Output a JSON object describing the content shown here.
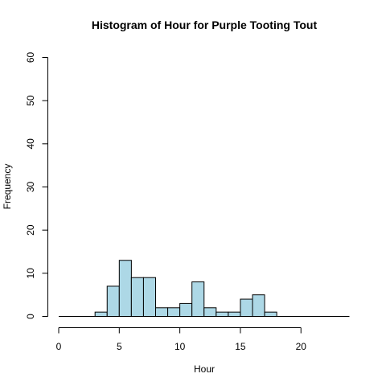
{
  "chart_data": {
    "type": "bar",
    "title": "Histogram of Hour for Purple Tooting Tout",
    "xlabel": "Hour",
    "ylabel": "Frequency",
    "xlim": [
      0,
      24
    ],
    "ylim": [
      0,
      60
    ],
    "bin_width": 1,
    "bins": [
      {
        "start": 3,
        "end": 4,
        "count": 1
      },
      {
        "start": 4,
        "end": 5,
        "count": 7
      },
      {
        "start": 5,
        "end": 6,
        "count": 13
      },
      {
        "start": 6,
        "end": 7,
        "count": 9
      },
      {
        "start": 7,
        "end": 8,
        "count": 9
      },
      {
        "start": 8,
        "end": 9,
        "count": 2
      },
      {
        "start": 9,
        "end": 10,
        "count": 2
      },
      {
        "start": 10,
        "end": 11,
        "count": 3
      },
      {
        "start": 11,
        "end": 12,
        "count": 8
      },
      {
        "start": 12,
        "end": 13,
        "count": 2
      },
      {
        "start": 13,
        "end": 14,
        "count": 1
      },
      {
        "start": 14,
        "end": 15,
        "count": 1
      },
      {
        "start": 15,
        "end": 16,
        "count": 4
      },
      {
        "start": 16,
        "end": 17,
        "count": 5
      },
      {
        "start": 17,
        "end": 18,
        "count": 1
      }
    ],
    "x_ticks": [
      "0",
      "5",
      "10",
      "15",
      "20"
    ],
    "y_ticks": [
      "0",
      "10",
      "20",
      "30",
      "40",
      "50",
      "60"
    ],
    "bar_color": "#add8e6",
    "bar_edge_color": "#000000",
    "grid": false,
    "legend": "none"
  }
}
